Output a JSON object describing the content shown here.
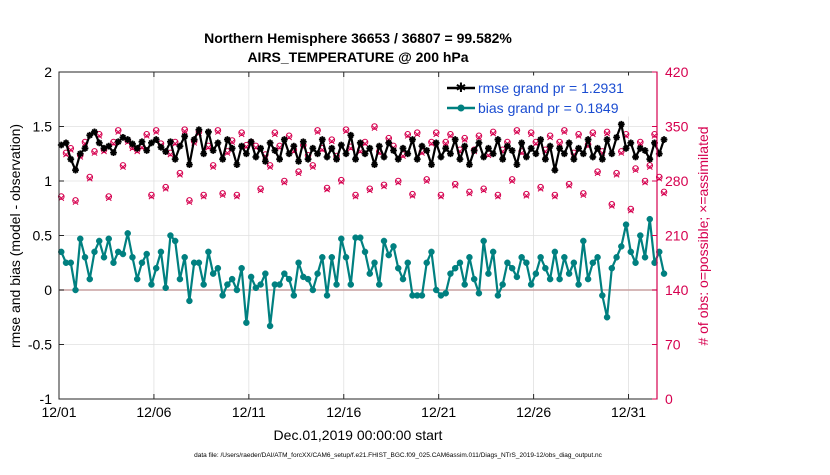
{
  "chart_data": {
    "type": "line",
    "title_line1": "Northern Hemisphere 36653 / 36807 = 99.582%",
    "title_line2": "AIRS_TEMPERATURE @ 200 hPa",
    "xlabel": "Dec.01,2019 00:00:00 start",
    "ylabel_left": "rmse and bias (model - observation)",
    "ylabel_right": "# of obs: o=possible; ×=assimilated",
    "footer": "data file: /Users/raeder/DAI/ATM_forcXX/CAM6_setup/f.e21.FHIST_BGC.f09_025.CAM6assim.011/Diags_NTrS_2019-12/obs_diag_output.nc",
    "xlim": [
      0,
      31.5
    ],
    "ylim_left": [
      -1,
      2
    ],
    "ylim_right": [
      0,
      420
    ],
    "x_ticks": [
      0,
      5,
      10,
      15,
      20,
      25,
      30
    ],
    "x_tick_labels": [
      "12/01",
      "12/06",
      "12/11",
      "12/16",
      "12/21",
      "12/26",
      "12/31"
    ],
    "y_left_ticks": [
      -1,
      -0.5,
      0,
      0.5,
      1,
      1.5,
      2
    ],
    "y_left_tick_labels": [
      "-1",
      "-0.5",
      "0",
      "0.5",
      "1",
      "1.5",
      "2"
    ],
    "y_right_ticks": [
      0,
      70,
      140,
      210,
      280,
      350,
      420
    ],
    "y_right_tick_labels": [
      "0",
      "70",
      "140",
      "210",
      "280",
      "350",
      "420"
    ],
    "legend": [
      {
        "label": "rmse grand pr = 1.2931",
        "color": "#000000"
      },
      {
        "label": "bias grand pr = 0.1849",
        "color": "#008080"
      }
    ],
    "colors": {
      "rmse": "#000000",
      "bias": "#008080",
      "obs": "#d6004f",
      "zero_line": "#c8a0a0",
      "grid": "#e0e0e0"
    },
    "samples_per_day": 4,
    "series": [
      {
        "name": "rmse",
        "values": [
          1.33,
          1.35,
          1.2,
          1.1,
          1.25,
          1.3,
          1.42,
          1.45,
          1.35,
          1.3,
          1.32,
          1.26,
          1.36,
          1.4,
          1.38,
          1.34,
          1.3,
          1.36,
          1.28,
          1.35,
          1.38,
          1.31,
          1.27,
          1.36,
          1.2,
          1.32,
          1.41,
          1.15,
          1.38,
          1.47,
          1.25,
          1.45,
          1.28,
          1.35,
          1.2,
          1.38,
          1.3,
          1.15,
          1.32,
          1.25,
          1.36,
          1.22,
          1.3,
          1.18,
          1.35,
          1.28,
          1.2,
          1.38,
          1.25,
          1.32,
          1.18,
          1.36,
          1.2,
          1.3,
          1.25,
          1.38,
          1.22,
          1.3,
          1.2,
          1.33,
          1.25,
          1.42,
          1.2,
          1.35,
          1.25,
          1.3,
          1.15,
          1.32,
          1.22,
          1.35,
          1.28,
          1.2,
          1.3,
          1.25,
          1.38,
          1.2,
          1.32,
          1.28,
          1.15,
          1.35,
          1.22,
          1.3,
          1.25,
          1.38,
          1.2,
          1.32,
          1.15,
          1.28,
          1.35,
          1.22,
          1.3,
          1.25,
          1.38,
          1.2,
          1.32,
          1.28,
          1.15,
          1.35,
          1.22,
          1.3,
          1.25,
          1.38,
          1.2,
          1.32,
          1.1,
          1.3,
          1.25,
          1.35,
          1.2,
          1.3,
          1.25,
          1.38,
          1.22,
          1.3,
          1.2,
          1.38,
          1.25,
          1.4,
          1.52,
          1.3,
          1.35,
          1.22,
          1.3,
          1.28,
          1.2,
          1.35,
          1.25,
          1.38
        ]
      },
      {
        "name": "bias",
        "values": [
          0.35,
          0.25,
          0.25,
          0.0,
          0.47,
          0.3,
          0.1,
          0.35,
          0.45,
          0.3,
          0.47,
          0.25,
          0.35,
          0.33,
          0.52,
          0.3,
          0.1,
          0.25,
          0.33,
          0.05,
          0.2,
          0.35,
          0.02,
          0.5,
          0.45,
          0.1,
          0.3,
          -0.1,
          0.25,
          0.25,
          0.05,
          0.35,
          0.15,
          0.2,
          -0.05,
          0.05,
          0.1,
          0.0,
          0.2,
          -0.3,
          0.12,
          0.02,
          0.05,
          0.15,
          -0.33,
          0.05,
          0.05,
          0.15,
          0.1,
          -0.05,
          0.25,
          0.12,
          0.1,
          0.0,
          0.15,
          0.3,
          -0.05,
          0.3,
          0.05,
          0.47,
          0.3,
          0.05,
          0.48,
          0.48,
          0.35,
          0.15,
          0.25,
          0.05,
          0.45,
          0.32,
          0.4,
          0.2,
          0.1,
          0.25,
          -0.05,
          -0.05,
          -0.05,
          0.25,
          0.35,
          0.0,
          -0.05,
          -0.03,
          0.15,
          0.2,
          0.25,
          0.05,
          0.3,
          0.1,
          -0.03,
          0.45,
          0.15,
          0.35,
          -0.05,
          0.05,
          0.25,
          0.2,
          0.12,
          0.3,
          0.25,
          0.05,
          0.15,
          0.3,
          0.2,
          0.1,
          0.35,
          0.1,
          0.3,
          0.15,
          0.25,
          0.05,
          0.45,
          0.1,
          0.25,
          0.3,
          -0.05,
          -0.25,
          0.2,
          0.3,
          0.4,
          0.6,
          0.35,
          0.25,
          0.5,
          0.3,
          0.65,
          0.25,
          0.35,
          0.15
        ]
      }
    ],
    "obs_possible_count": [
      260,
      316,
      322,
      255,
      313,
      330,
      285,
      318,
      340,
      320,
      260,
      330,
      345,
      300,
      332,
      324,
      320,
      325,
      340,
      262,
      345,
      328,
      272,
      316,
      330,
      290,
      346,
      255,
      331,
      343,
      262,
      325,
      300,
      345,
      264,
      318,
      332,
      262,
      342,
      326,
      330,
      325,
      270,
      314,
      300,
      342,
      325,
      280,
      338,
      320,
      292,
      326,
      313,
      300,
      345,
      322,
      271,
      333,
      312,
      281,
      346,
      324,
      262,
      320,
      330,
      270,
      350,
      318,
      275,
      335,
      325,
      280,
      314,
      340,
      263,
      342,
      318,
      282,
      330,
      342,
      262,
      330,
      340,
      276,
      320,
      335,
      266,
      320,
      338,
      270,
      315,
      343,
      262,
      320,
      330,
      282,
      345,
      318,
      263,
      342,
      330,
      272,
      320,
      338,
      262,
      330,
      345,
      276,
      316,
      340,
      264,
      327,
      342,
      292,
      318,
      343,
      250,
      290,
      318,
      340,
      244,
      296,
      330,
      280,
      300,
      340,
      285,
      266
    ],
    "obs_assimilated_count": [
      258,
      314,
      320,
      253,
      311,
      328,
      283,
      316,
      338,
      318,
      258,
      328,
      343,
      298,
      330,
      322,
      318,
      323,
      338,
      260,
      343,
      326,
      270,
      314,
      328,
      288,
      344,
      253,
      329,
      341,
      260,
      323,
      298,
      343,
      262,
      316,
      330,
      260,
      340,
      324,
      328,
      323,
      268,
      312,
      298,
      340,
      323,
      278,
      336,
      318,
      290,
      324,
      311,
      298,
      343,
      320,
      269,
      331,
      310,
      279,
      344,
      322,
      260,
      318,
      328,
      268,
      348,
      316,
      273,
      333,
      323,
      278,
      312,
      338,
      261,
      340,
      316,
      280,
      328,
      340,
      260,
      328,
      338,
      274,
      318,
      333,
      264,
      318,
      336,
      268,
      313,
      341,
      260,
      318,
      328,
      280,
      343,
      316,
      261,
      340,
      328,
      270,
      318,
      336,
      260,
      328,
      343,
      274,
      314,
      338,
      262,
      325,
      340,
      290,
      316,
      341,
      248,
      288,
      316,
      338,
      242,
      294,
      328,
      278,
      298,
      338,
      283,
      264
    ]
  }
}
